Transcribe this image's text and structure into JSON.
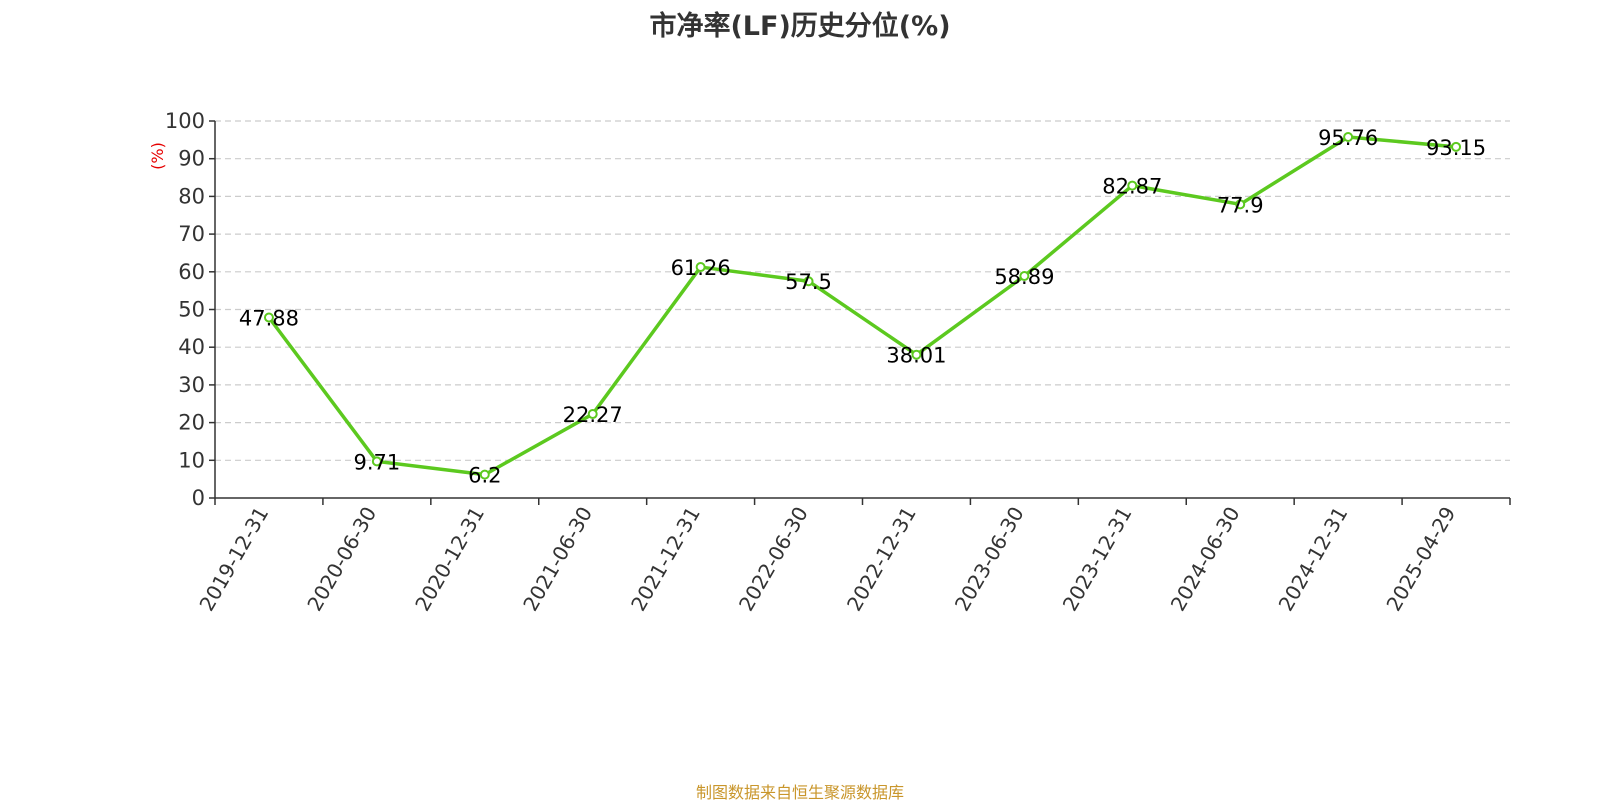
{
  "title": "市净率(LF)历史分位(%)",
  "footer": "制图数据来自恒生聚源数据库",
  "colors": {
    "line": "#5cc91f",
    "grid": "#cccccc",
    "axis": "#333333",
    "unit": "#e60000",
    "footer": "#c9962b"
  },
  "chart_data": {
    "type": "line",
    "unit_label": "(%)",
    "ylim": [
      0,
      100
    ],
    "yticks": [
      0,
      10,
      20,
      30,
      40,
      50,
      60,
      70,
      80,
      90,
      100
    ],
    "grid": true,
    "categories": [
      "2019-12-31",
      "2020-06-30",
      "2020-12-31",
      "2021-06-30",
      "2021-12-31",
      "2022-06-30",
      "2022-12-31",
      "2023-06-30",
      "2023-12-31",
      "2024-06-30",
      "2024-12-31",
      "2025-04-29"
    ],
    "series": [
      {
        "values": [
          47.88,
          9.71,
          6.2,
          22.27,
          61.26,
          57.5,
          38.01,
          58.89,
          82.87,
          77.9,
          95.76,
          93.15
        ]
      }
    ],
    "data_labels": [
      "47.88",
      "9.71",
      "6.2",
      "22.27",
      "61.26",
      "57.5",
      "38.01",
      "58.89",
      "82.87",
      "77.9",
      "95.76",
      "93.15"
    ]
  }
}
